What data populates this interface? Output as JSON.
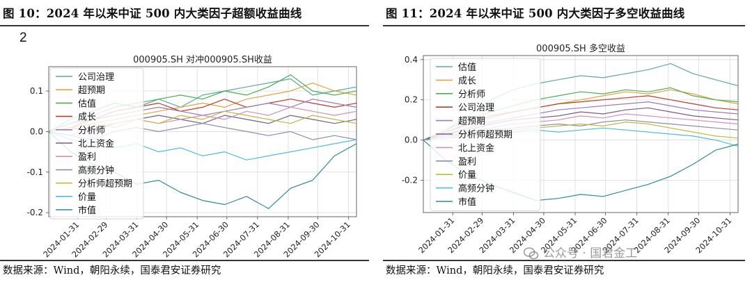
{
  "left": {
    "figure_title": "图 10：2024 年以来中证 500 内大类因子超额收益曲线",
    "panel_mark": "2",
    "source": "数据来源：Wind，朝阳永续，国泰君安证券研究"
  },
  "right": {
    "figure_title": "图 11：2024 年以来中证 500 内大类因子多空收益曲线",
    "source": "数据来源：Wind，朝阳永续，国泰君安证券研究"
  },
  "watermark": {
    "text": "公众号 · 国君金工",
    "icon": "wechat-icon"
  },
  "chart_data": [
    {
      "type": "line",
      "title": "000905.SH  对冲000905.SH收益",
      "x_ticks": [
        "2024-01-31",
        "2024-02-29",
        "2024-03-31",
        "2024-04-30",
        "2024-05-31",
        "2024-06-30",
        "2024-07-31",
        "2024-08-31",
        "2024-09-30",
        "2024-10-31"
      ],
      "x_range": [
        "2024-01-02",
        "2024-11-08"
      ],
      "y_ticks": [
        -0.2,
        -0.1,
        0.0,
        0.1
      ],
      "ylim": [
        -0.21,
        0.16
      ],
      "grid": true,
      "legend_position": "left",
      "series": [
        {
          "name": "公司治理",
          "color": "#5aaaa0",
          "values": [
            0.0,
            0.02,
            0.04,
            0.06,
            0.07,
            0.08,
            0.06,
            0.09,
            0.1,
            0.11,
            0.12,
            0.13,
            0.09,
            0.1,
            0.11
          ]
        },
        {
          "name": "超预期",
          "color": "#e6a43a",
          "values": [
            0.0,
            0.01,
            0.02,
            0.03,
            0.04,
            0.05,
            0.06,
            0.07,
            0.06,
            0.08,
            0.09,
            0.1,
            0.12,
            0.1,
            0.09
          ]
        },
        {
          "name": "估值",
          "color": "#4caf50",
          "values": [
            0.0,
            0.03,
            0.05,
            0.07,
            0.06,
            0.08,
            0.09,
            0.08,
            0.1,
            0.09,
            0.11,
            0.14,
            0.1,
            0.09,
            0.1
          ]
        },
        {
          "name": "成长",
          "color": "#c0392b",
          "values": [
            0.0,
            0.01,
            0.03,
            0.05,
            0.06,
            0.07,
            0.05,
            0.06,
            0.08,
            0.06,
            0.07,
            0.08,
            0.07,
            0.06,
            0.07
          ]
        },
        {
          "name": "分析师",
          "color": "#9b7bb8",
          "values": [
            0.0,
            0.02,
            0.03,
            0.04,
            0.05,
            0.06,
            0.05,
            0.04,
            0.05,
            0.06,
            0.07,
            0.06,
            0.08,
            0.07,
            0.06
          ]
        },
        {
          "name": "北上资金",
          "color": "#7a5c8e",
          "values": [
            0.0,
            0.01,
            0.0,
            0.02,
            0.03,
            0.04,
            0.03,
            0.02,
            0.04,
            0.03,
            0.02,
            0.04,
            0.03,
            0.02,
            0.03
          ]
        },
        {
          "name": "盈利",
          "color": "#d98fb5",
          "values": [
            0.0,
            -0.01,
            0.01,
            0.02,
            0.03,
            0.02,
            0.03,
            0.04,
            0.03,
            0.05,
            0.04,
            0.06,
            0.05,
            0.04,
            0.05
          ]
        },
        {
          "name": "高频分钟",
          "color": "#8a8fb0",
          "values": [
            0.0,
            -0.01,
            -0.02,
            0.0,
            0.01,
            0.0,
            0.01,
            0.02,
            0.01,
            0.0,
            -0.01,
            0.0,
            -0.02,
            -0.01,
            -0.02
          ]
        },
        {
          "name": "分析师超预期",
          "color": "#c2b93a",
          "values": [
            0.0,
            0.01,
            0.02,
            0.01,
            0.03,
            0.02,
            0.04,
            0.03,
            0.05,
            0.04,
            0.03,
            0.02,
            0.04,
            0.03,
            0.02
          ]
        },
        {
          "name": "价量",
          "color": "#4bbfd8",
          "values": [
            0.0,
            -0.02,
            -0.03,
            -0.04,
            -0.03,
            -0.05,
            -0.04,
            -0.06,
            -0.05,
            -0.07,
            -0.06,
            -0.05,
            -0.04,
            -0.03,
            -0.02
          ]
        },
        {
          "name": "市值",
          "color": "#2e8b9a",
          "values": [
            0.0,
            -0.05,
            -0.08,
            -0.1,
            -0.13,
            -0.12,
            -0.15,
            -0.17,
            -0.18,
            -0.16,
            -0.19,
            -0.14,
            -0.12,
            -0.06,
            -0.03
          ]
        }
      ]
    },
    {
      "type": "line",
      "title": "000905.SH  多空收益",
      "x_ticks": [
        "2024-01-31",
        "2024-02-29",
        "2024-03-31",
        "2024-04-30",
        "2024-05-31",
        "2024-06-30",
        "2024-07-31",
        "2024-08-31",
        "2024-09-30",
        "2024-10-31"
      ],
      "x_range": [
        "2024-01-02",
        "2024-11-08"
      ],
      "y_ticks": [
        -0.2,
        0.0,
        0.2,
        0.4
      ],
      "ylim": [
        -0.36,
        0.42
      ],
      "grid": true,
      "legend_position": "left",
      "series": [
        {
          "name": "估值",
          "color": "#5aaaa0",
          "values": [
            0.0,
            0.05,
            0.12,
            0.2,
            0.25,
            0.28,
            0.3,
            0.32,
            0.31,
            0.33,
            0.35,
            0.38,
            0.33,
            0.3,
            0.27
          ]
        },
        {
          "name": "成长",
          "color": "#e6a43a",
          "values": [
            0.0,
            0.04,
            0.08,
            0.11,
            0.14,
            0.16,
            0.18,
            0.2,
            0.22,
            0.24,
            0.23,
            0.25,
            0.23,
            0.2,
            0.18
          ]
        },
        {
          "name": "分析师",
          "color": "#4caf50",
          "values": [
            0.0,
            0.05,
            0.1,
            0.14,
            0.17,
            0.2,
            0.22,
            0.24,
            0.23,
            0.25,
            0.24,
            0.26,
            0.22,
            0.2,
            0.19
          ]
        },
        {
          "name": "公司治理",
          "color": "#c0392b",
          "values": [
            0.0,
            0.04,
            0.08,
            0.12,
            0.14,
            0.16,
            0.18,
            0.19,
            0.2,
            0.21,
            0.22,
            0.2,
            0.18,
            0.16,
            0.15
          ]
        },
        {
          "name": "超预期",
          "color": "#9b7bb8",
          "values": [
            0.0,
            0.03,
            0.06,
            0.09,
            0.11,
            0.13,
            0.15,
            0.16,
            0.17,
            0.18,
            0.19,
            0.17,
            0.15,
            0.14,
            0.13
          ]
        },
        {
          "name": "分析师超预期",
          "color": "#7a5c8e",
          "values": [
            0.0,
            0.03,
            0.05,
            0.08,
            0.1,
            0.11,
            0.12,
            0.14,
            0.13,
            0.15,
            0.16,
            0.14,
            0.12,
            0.11,
            0.1
          ]
        },
        {
          "name": "北上资金",
          "color": "#d98fb5",
          "values": [
            0.0,
            0.02,
            0.04,
            0.06,
            0.08,
            0.09,
            0.1,
            0.12,
            0.11,
            0.13,
            0.12,
            0.11,
            0.1,
            0.09,
            0.08
          ]
        },
        {
          "name": "盈利",
          "color": "#8a8fb0",
          "values": [
            0.0,
            0.02,
            0.03,
            0.05,
            0.06,
            0.07,
            0.08,
            0.07,
            0.09,
            0.1,
            0.09,
            0.08,
            0.07,
            0.06,
            0.05
          ]
        },
        {
          "name": "价量",
          "color": "#c2b93a",
          "values": [
            0.0,
            0.01,
            0.03,
            0.04,
            0.05,
            0.06,
            0.07,
            0.08,
            0.07,
            0.09,
            0.08,
            0.06,
            0.04,
            0.02,
            0.01
          ]
        },
        {
          "name": "高频分钟",
          "color": "#4bbfd8",
          "values": [
            0.0,
            0.01,
            0.02,
            0.03,
            0.04,
            0.05,
            0.04,
            0.05,
            0.06,
            0.05,
            0.04,
            0.03,
            0.02,
            0.0,
            -0.03
          ]
        },
        {
          "name": "市值",
          "color": "#2e8b9a",
          "values": [
            0.0,
            -0.1,
            -0.17,
            -0.22,
            -0.26,
            -0.3,
            -0.29,
            -0.27,
            -0.28,
            -0.25,
            -0.22,
            -0.18,
            -0.12,
            -0.05,
            -0.02
          ]
        }
      ]
    }
  ]
}
